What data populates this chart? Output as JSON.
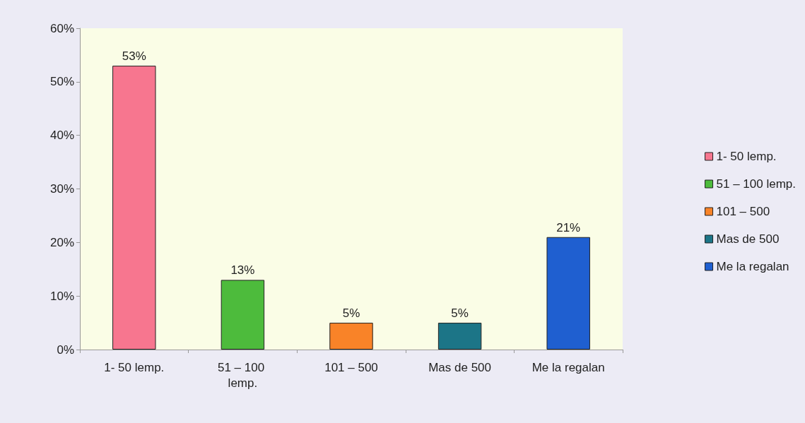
{
  "chart_data": {
    "type": "bar",
    "categories": [
      "1- 50 lemp.",
      "51 – 100 lemp.",
      "101 – 500",
      "Mas de 500",
      "Me la regalan"
    ],
    "series": [
      {
        "name": "1- 50 lemp.",
        "color": "#f7768f",
        "values": [
          53,
          null,
          null,
          null,
          null
        ],
        "value_labels": [
          "53%",
          null,
          null,
          null,
          null
        ]
      },
      {
        "name": "51 – 100 lemp.",
        "color": "#4dbb3c",
        "values": [
          null,
          13,
          null,
          null,
          null
        ],
        "value_labels": [
          null,
          "13%",
          null,
          null,
          null
        ]
      },
      {
        "name": "101 – 500",
        "color": "#f98328",
        "values": [
          null,
          null,
          5,
          null,
          null
        ],
        "value_labels": [
          null,
          null,
          "5%",
          null,
          null
        ]
      },
      {
        "name": "Mas de 500",
        "color": "#1c7587",
        "values": [
          null,
          null,
          null,
          5,
          null
        ],
        "value_labels": [
          null,
          null,
          null,
          "5%",
          null
        ]
      },
      {
        "name": "Me la regalan",
        "color": "#1f5fd0",
        "values": [
          null,
          null,
          null,
          null,
          21
        ],
        "value_labels": [
          null,
          null,
          null,
          null,
          "21%"
        ]
      }
    ],
    "stacked": true,
    "ylim": [
      0,
      60
    ],
    "yticks": [
      {
        "value": 0,
        "label": "0%"
      },
      {
        "value": 10,
        "label": "10%"
      },
      {
        "value": 20,
        "label": "20%"
      },
      {
        "value": 30,
        "label": "30%"
      },
      {
        "value": 40,
        "label": "40%"
      },
      {
        "value": 50,
        "label": "50%"
      },
      {
        "value": 60,
        "label": "60%"
      }
    ],
    "grid": false,
    "legend": "right"
  }
}
